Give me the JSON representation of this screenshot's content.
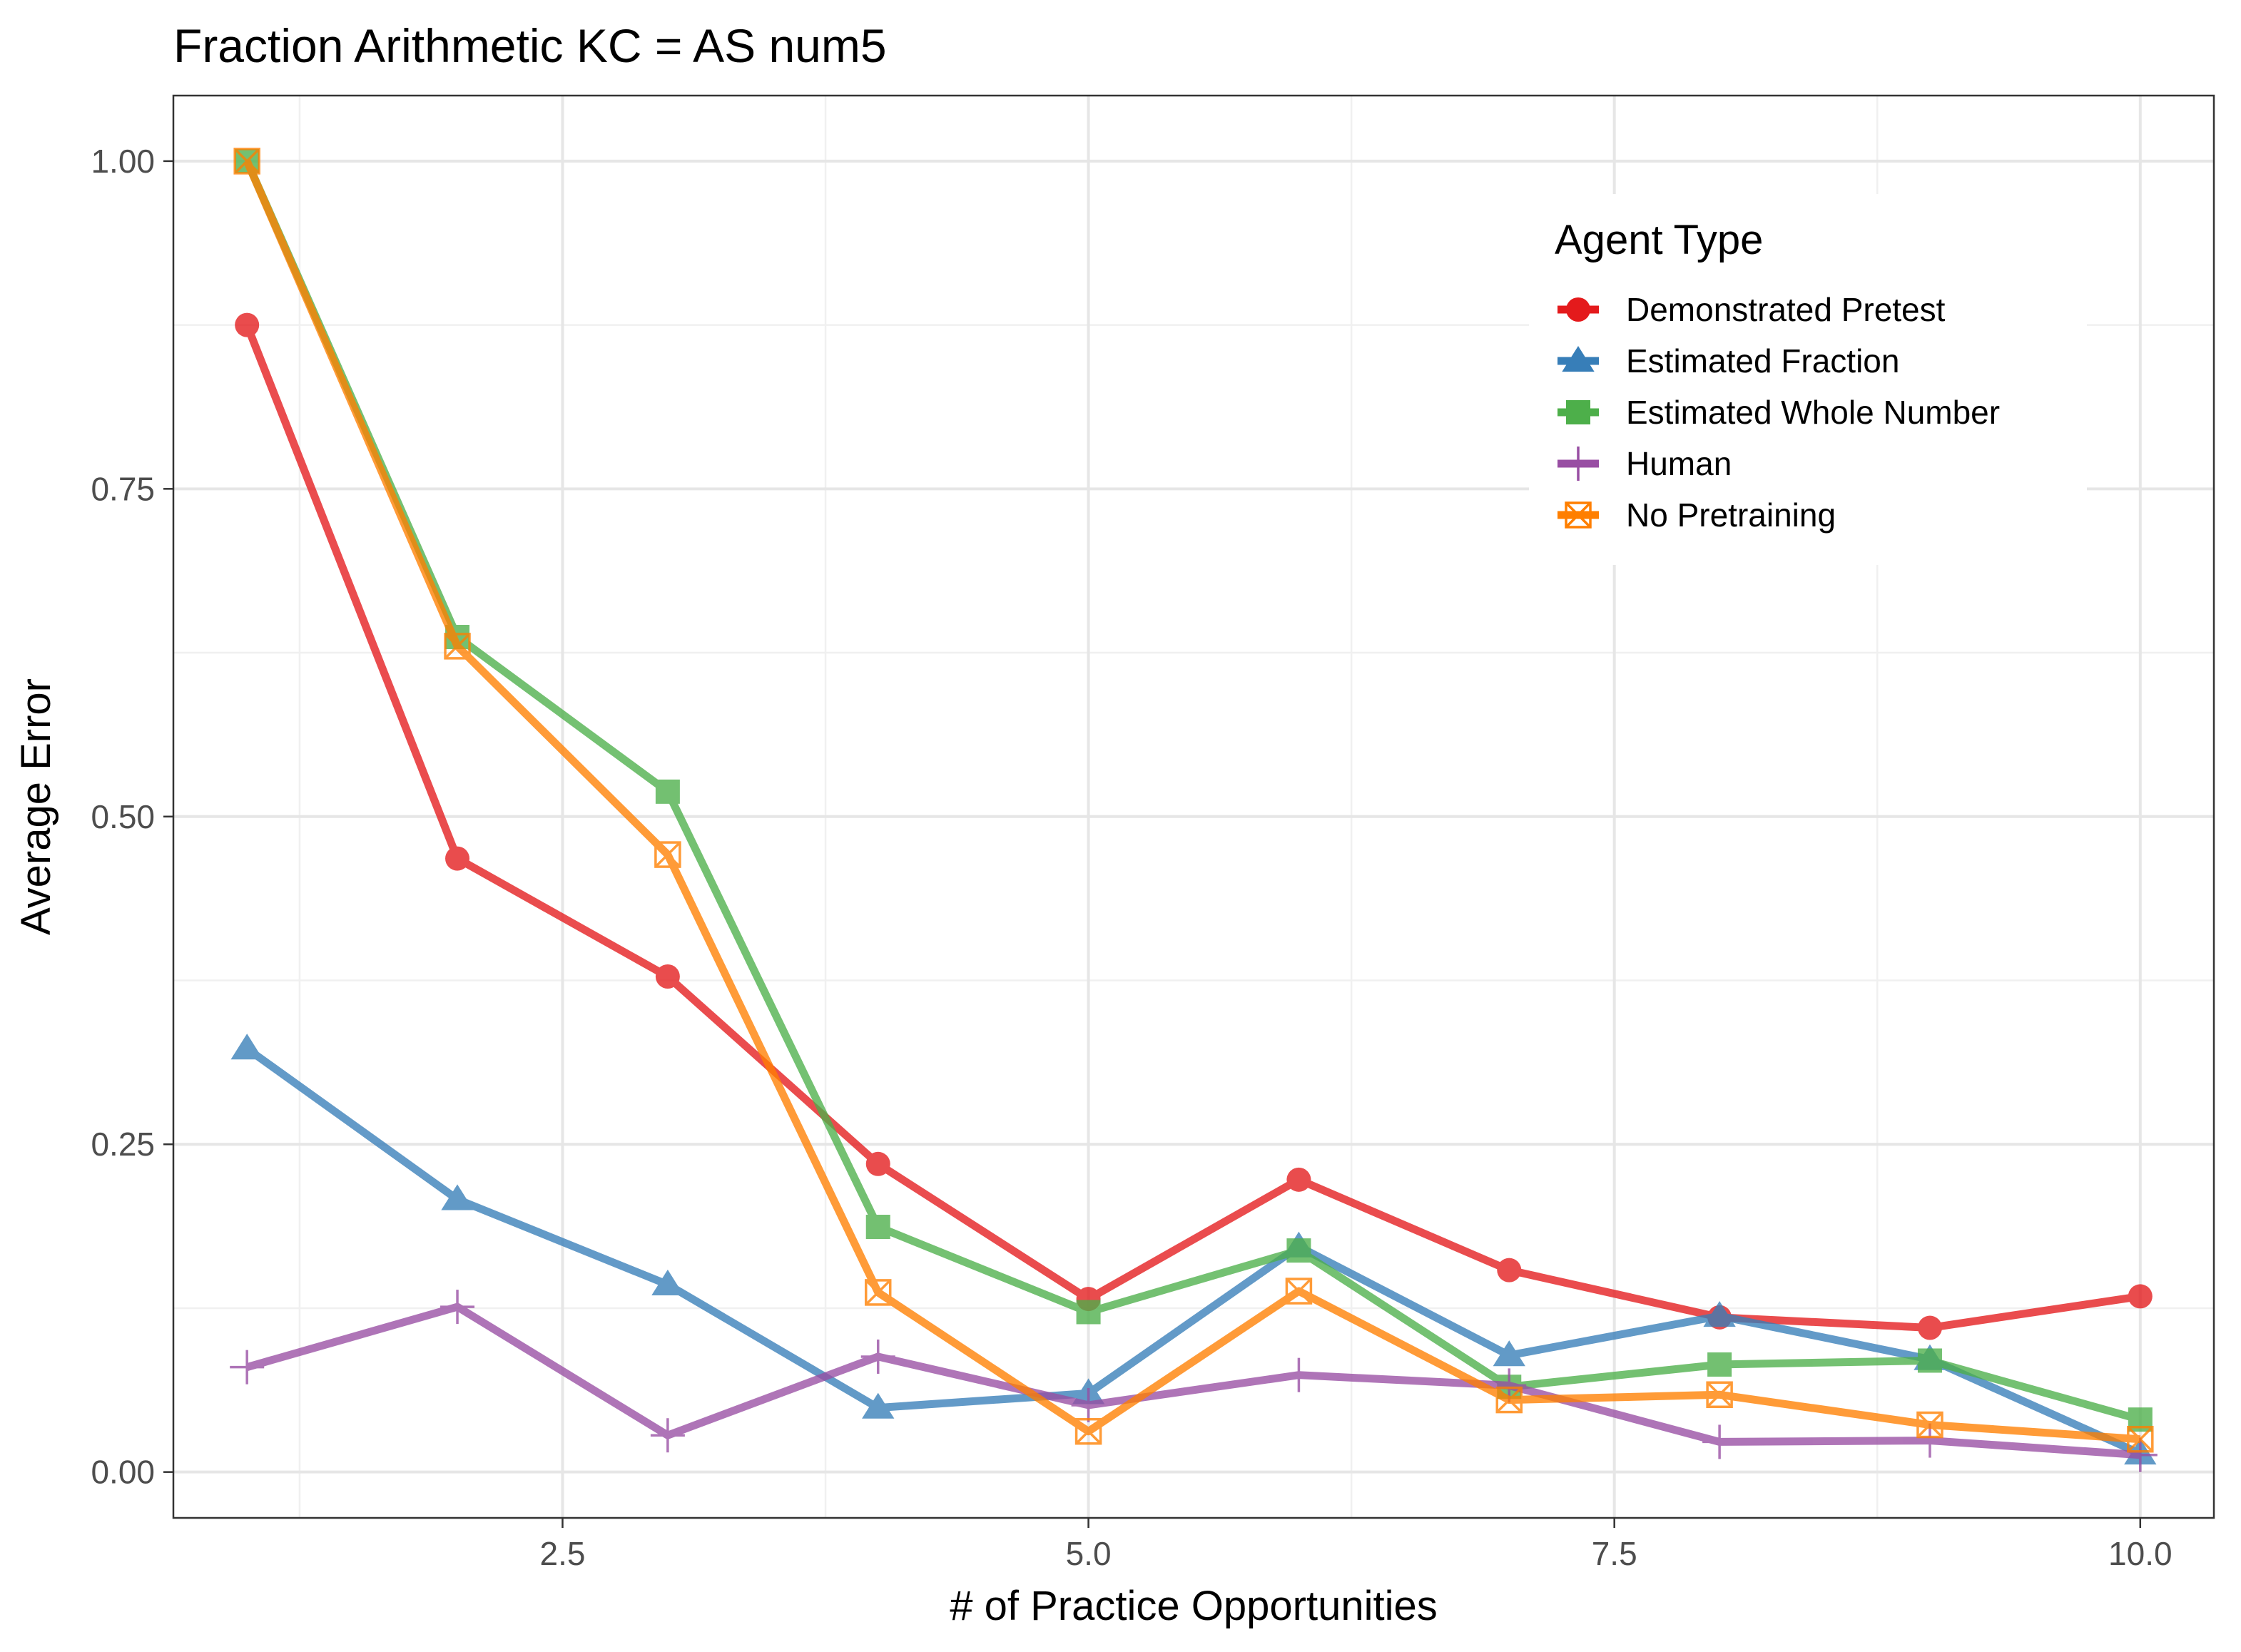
{
  "chart_data": {
    "type": "line",
    "title": "Fraction Arithmetic KC =  AS num5",
    "xlabel": "# of Practice Opportunities",
    "ylabel": "Average Error",
    "xlim": [
      0.65,
      10.35
    ],
    "ylim": [
      -0.035,
      1.05
    ],
    "x_ticks": [
      2.5,
      5.0,
      7.5,
      10.0
    ],
    "x_tick_labels": [
      "2.5",
      "5.0",
      "7.5",
      "10.0"
    ],
    "x_minor": [
      1.25,
      3.75,
      6.25,
      8.75
    ],
    "y_ticks": [
      0.0,
      0.25,
      0.5,
      0.75,
      1.0
    ],
    "y_tick_labels": [
      "0.00",
      "0.25",
      "0.50",
      "0.75",
      "1.00"
    ],
    "y_minor": [
      0.125,
      0.375,
      0.625,
      0.875
    ],
    "grid": true,
    "legend": {
      "title": "Agent Type",
      "position": "top-right"
    },
    "x": [
      1,
      2,
      3,
      4,
      5,
      6,
      7,
      8,
      9,
      10
    ],
    "series": [
      {
        "name": "Demonstrated Pretest",
        "color": "#e41a1c",
        "marker": "circle",
        "values": [
          0.875,
          0.468,
          0.378,
          0.235,
          0.132,
          0.223,
          0.154,
          0.118,
          0.11,
          0.134
        ]
      },
      {
        "name": "Estimated Fraction",
        "color": "#377eb8",
        "marker": "triangle",
        "values": [
          0.323,
          0.208,
          0.143,
          0.049,
          0.06,
          0.172,
          0.089,
          0.119,
          0.086,
          0.014
        ]
      },
      {
        "name": "Estimated Whole Number",
        "color": "#4daf4a",
        "marker": "square",
        "values": [
          1.0,
          0.637,
          0.519,
          0.187,
          0.122,
          0.169,
          0.065,
          0.082,
          0.085,
          0.04
        ]
      },
      {
        "name": "Human",
        "color": "#984ea3",
        "marker": "plus",
        "values": [
          0.08,
          0.126,
          0.028,
          0.088,
          0.051,
          0.074,
          0.066,
          0.023,
          0.024,
          0.013
        ]
      },
      {
        "name": "No Pretraining",
        "color": "#ff7f00",
        "marker": "square-cross",
        "values": [
          1.0,
          0.63,
          0.471,
          0.137,
          0.031,
          0.138,
          0.055,
          0.059,
          0.036,
          0.025
        ]
      }
    ]
  }
}
